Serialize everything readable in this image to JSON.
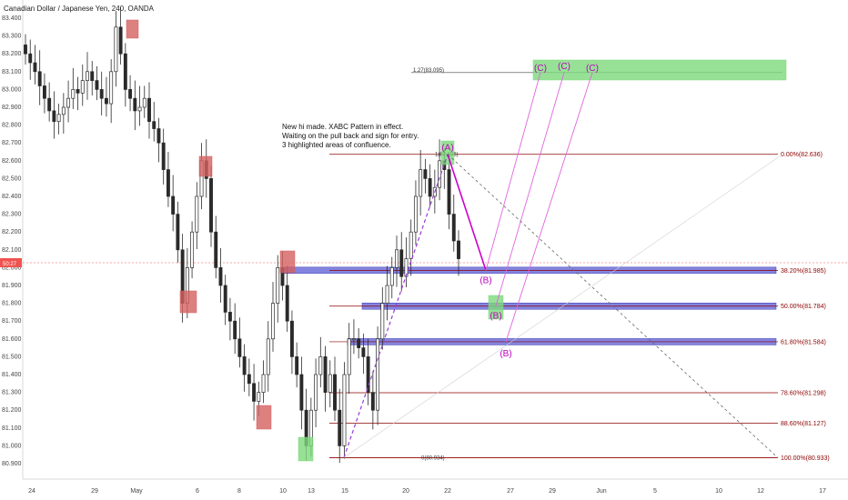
{
  "header": {
    "title": "Canadian Dollar / Japanese Yen, 240, OANDA"
  },
  "price_tag": "50:27",
  "note": {
    "lines": [
      "New hi made. XABC Pattern in effect.",
      "Waiting on the pull back and sign for entry.",
      "3 highlighted areas of confluence."
    ]
  },
  "colors": {
    "bull": "#26a69a",
    "bear": "#ef5350",
    "candle": "#2a2a2a",
    "fib_line": "#8b0000",
    "zone": "#5b5bd6",
    "magenta": "#cc00cc",
    "green_box": "#7dd97d",
    "red_box": "#d46060"
  },
  "chart_data": {
    "type": "candlestick",
    "title": "Canadian Dollar / Japanese Yen, 240, OANDA",
    "ylim": [
      80.88,
      83.42
    ],
    "y_ticks": [
      "83.400",
      "83.300",
      "83.200",
      "83.100",
      "83.000",
      "82.900",
      "82.800",
      "82.700",
      "82.600",
      "82.500",
      "82.400",
      "82.300",
      "82.200",
      "82.100",
      "82.000",
      "81.900",
      "81.800",
      "81.700",
      "81.600",
      "81.500",
      "81.400",
      "81.300",
      "81.200",
      "81.100",
      "81.000",
      "80.900"
    ],
    "x_ticks": [
      "24",
      "29",
      "May",
      "6",
      "8",
      "10",
      "13",
      "15",
      "20",
      "22",
      "27",
      "29",
      "Jun",
      "5",
      "10",
      "12",
      "17"
    ],
    "candles_close_approx": [
      83.2,
      83.15,
      83.1,
      83.02,
      82.95,
      82.88,
      82.82,
      82.86,
      82.9,
      82.95,
      83.0,
      82.98,
      83.05,
      83.1,
      83.05,
      83.0,
      82.95,
      82.92,
      83.1,
      83.35,
      83.2,
      83.0,
      82.95,
      82.88,
      82.9,
      82.95,
      82.82,
      82.78,
      82.7,
      82.55,
      82.4,
      82.3,
      82.1,
      81.8,
      82.0,
      82.2,
      82.4,
      82.6,
      82.5,
      82.2,
      82.0,
      81.9,
      81.75,
      81.7,
      81.6,
      81.5,
      81.4,
      81.35,
      81.25,
      81.3,
      81.4,
      81.6,
      81.8,
      82.0,
      81.9,
      81.7,
      81.5,
      81.4,
      81.2,
      81.0,
      81.2,
      81.4,
      81.5,
      81.3,
      81.4,
      81.2,
      81.0,
      81.4,
      81.6,
      81.6,
      81.55,
      81.5,
      81.3,
      81.2,
      81.6,
      81.8,
      81.9,
      82.0,
      82.1,
      81.95,
      82.05,
      82.2,
      82.4,
      82.55,
      82.5,
      82.4,
      82.45,
      82.6,
      82.55,
      82.3,
      82.15,
      82.05
    ],
    "fib_levels": [
      {
        "label": "0.00%(82.636)",
        "value": 82.636
      },
      {
        "label": "38.20%(81.985)",
        "value": 81.985
      },
      {
        "label": "50.00%(81.784)",
        "value": 81.784
      },
      {
        "label": "61.80%(81.584)",
        "value": 81.584
      },
      {
        "label": "78.60%(81.298)",
        "value": 81.298
      },
      {
        "label": "88.60%(81.127)",
        "value": 81.127
      },
      {
        "label": "100.00%(80.933)",
        "value": 80.933
      }
    ],
    "extension": {
      "label": "1.27(83.095)",
      "value": 83.095
    },
    "retracement_source": {
      "label_top": "1(82.636)",
      "label_bottom": "0(80.934)"
    },
    "confluence_zones": [
      81.985,
      81.784,
      81.584
    ],
    "pattern_points": [
      {
        "label": "(A)",
        "price": 82.636
      },
      {
        "label": "(B)",
        "price": 81.985
      },
      {
        "label": "(B)",
        "price": 81.784
      },
      {
        "label": "(B)",
        "price": 81.584
      },
      {
        "label": "(C)",
        "price": 83.095
      },
      {
        "label": "(C)",
        "price": 83.095
      },
      {
        "label": "(C)",
        "price": 83.095
      }
    ]
  }
}
